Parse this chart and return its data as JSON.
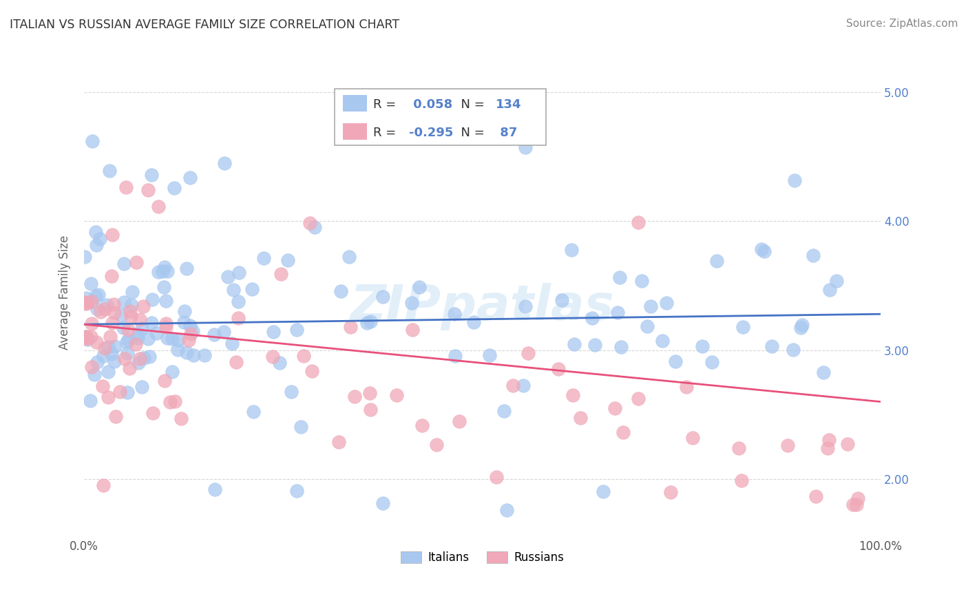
{
  "title": "ITALIAN VS RUSSIAN AVERAGE FAMILY SIZE CORRELATION CHART",
  "source": "Source: ZipAtlas.com",
  "ylabel": "Average Family Size",
  "legend_label1": "Italians",
  "legend_label2": "Russians",
  "R1": 0.058,
  "N1": 134,
  "R2": -0.295,
  "N2": 87,
  "color1": "#a8c8f0",
  "color2": "#f0a8b8",
  "line_color1": "#4472c4",
  "line_color2": "#e8507a",
  "ytick_color": "#5580cc",
  "bg_color": "#ffffff",
  "xlim": [
    0,
    100
  ],
  "ylim": [
    1.55,
    5.35
  ],
  "yticks": [
    2.0,
    3.0,
    4.0,
    5.0
  ],
  "watermark": "ZIPpatlas",
  "seed": 12345
}
